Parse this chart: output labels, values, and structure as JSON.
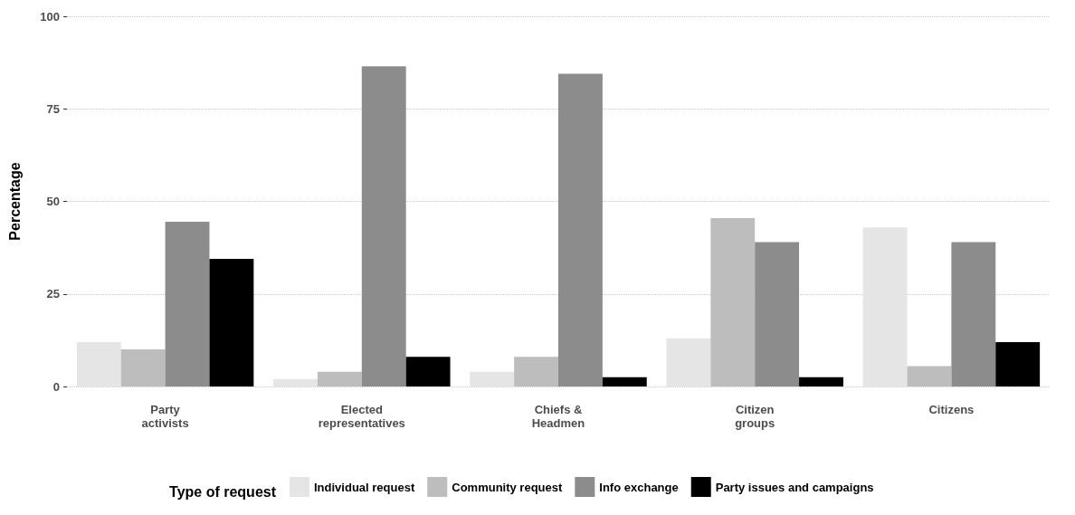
{
  "chart_data": {
    "type": "bar",
    "ylabel": "Percentage",
    "legend_title": "Type of request",
    "categories": [
      "Party\nactivists",
      "Elected\nrepresentatives",
      "Chiefs &\nHeadmen",
      "Citizen\ngroups",
      "Citizens"
    ],
    "series": [
      {
        "name": "Individual request",
        "color": "#e5e5e5",
        "values": [
          12,
          2,
          4,
          13,
          43
        ]
      },
      {
        "name": "Community request",
        "color": "#bdbdbd",
        "values": [
          10,
          4,
          8,
          45.5,
          5.5
        ]
      },
      {
        "name": "Info exchange",
        "color": "#8c8c8c",
        "values": [
          44.5,
          86.5,
          84.5,
          39,
          39
        ]
      },
      {
        "name": "Party issues and campaigns",
        "color": "#000000",
        "values": [
          34.5,
          8,
          2.5,
          2.5,
          12
        ]
      }
    ],
    "ylim": [
      0,
      100
    ],
    "yticks": [
      0,
      25,
      50,
      75,
      100
    ],
    "grid": "y",
    "legend": "bottom"
  }
}
